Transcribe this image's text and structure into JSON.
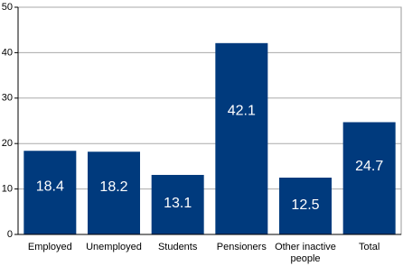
{
  "chart_data": {
    "type": "bar",
    "categories": [
      "Employed",
      "Unemployed",
      "Students",
      "Pensioners",
      "Other inactive people",
      "Total"
    ],
    "values": [
      18.4,
      18.2,
      13.1,
      42.1,
      12.5,
      24.7
    ],
    "color": "#003a7d",
    "ylim": [
      0,
      50
    ],
    "yticks": [
      0,
      10,
      20,
      30,
      40,
      50
    ],
    "grid": true
  }
}
